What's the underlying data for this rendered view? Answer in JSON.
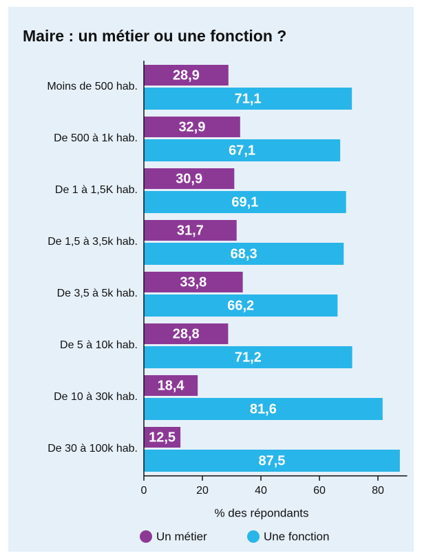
{
  "chart_data": {
    "type": "bar",
    "orientation": "horizontal",
    "title": "Maire : un métier ou une fonction ?",
    "categories": [
      "Moins de 500 hab.",
      "De 500 à 1k hab.",
      "De 1 à 1,5K hab.",
      "De 1,5 à 3,5k hab.",
      "De 3,5 à 5k hab.",
      "De 5 à 10k hab.",
      "De 10 à 30k hab.",
      "De 30 à 100k hab."
    ],
    "series": [
      {
        "name": "Un métier",
        "color": "#8c3996",
        "values": [
          28.9,
          32.9,
          30.9,
          31.7,
          33.8,
          28.8,
          18.4,
          12.5
        ],
        "value_labels": [
          "28,9",
          "32,9",
          "30,9",
          "31,7",
          "33,8",
          "28,8",
          "18,4",
          "12,5"
        ]
      },
      {
        "name": "Une fonction",
        "color": "#28b5e9",
        "values": [
          71.1,
          67.1,
          69.1,
          68.3,
          66.2,
          71.2,
          81.6,
          87.5
        ],
        "value_labels": [
          "71,1",
          "67,1",
          "69,1",
          "68,3",
          "66,2",
          "71,2",
          "81,6",
          "87,5"
        ]
      }
    ],
    "xlabel": "% des répondants",
    "xlim": [
      0,
      90
    ],
    "xticks": [
      0,
      20,
      40,
      60,
      80
    ],
    "legend": "bottom"
  }
}
